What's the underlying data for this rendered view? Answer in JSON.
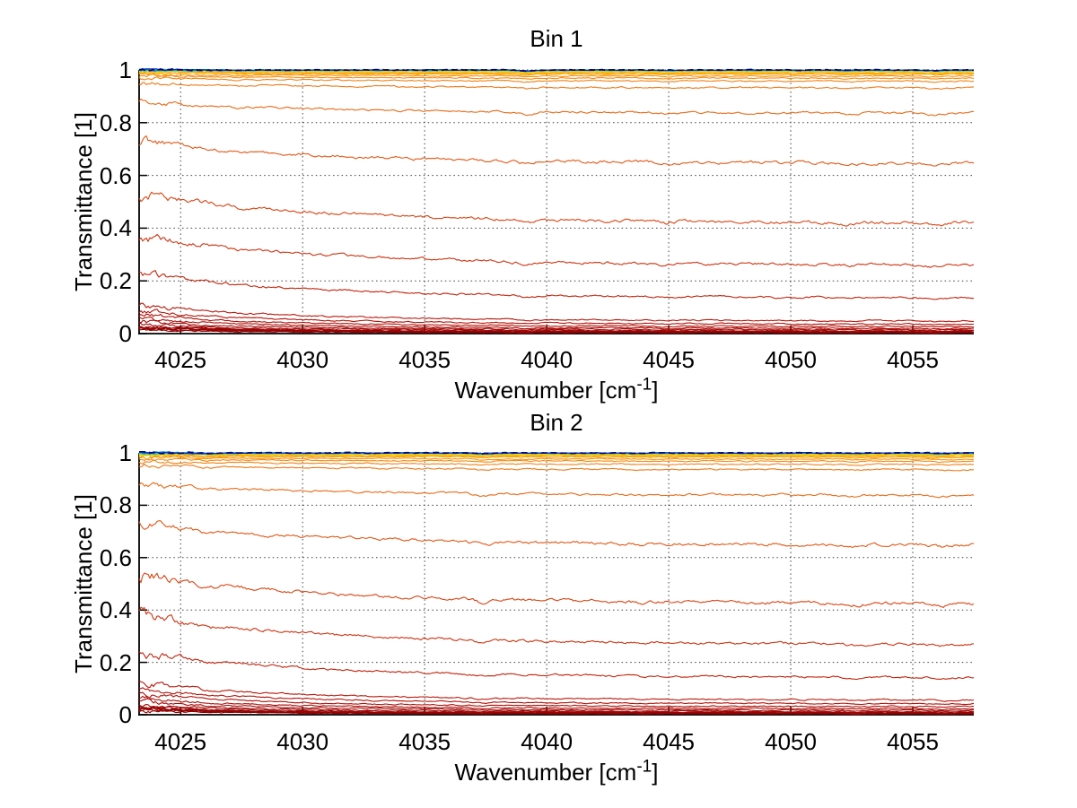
{
  "figure": {
    "background": "#ffffff",
    "axis_color": "#000000"
  },
  "grid_color": "#3f3f3f",
  "chart_data": [
    {
      "type": "line",
      "title": "Bin 1",
      "xlabel_base": "Wavenumber [cm",
      "xlabel_sup": "-1",
      "xlabel_close": "]",
      "ylabel": "Transmittance [1]",
      "xlim": [
        4023.3,
        4057.5
      ],
      "ylim": [
        0,
        1
      ],
      "xticks": [
        "4025",
        "4030",
        "4035",
        "4040",
        "4045",
        "4050",
        "4055"
      ],
      "xtick_values": [
        4025,
        4030,
        4035,
        4040,
        4045,
        4050,
        4055
      ],
      "yticks": [
        "1",
        "0.8",
        "0.6",
        "0.4",
        "0.2",
        "0"
      ],
      "ytick_values": [
        1,
        0.8,
        0.6,
        0.4,
        0.2,
        0
      ],
      "grid": "dotted",
      "legend": "none",
      "decay": {
        "amplitude": 0.27,
        "tau": 8
      },
      "noise": {
        "base": 0.0011,
        "mid": 0.0035,
        "left_boost": 3.5,
        "left_tau": 1.3
      },
      "dips": [
        {
          "x": 4027.3,
          "depth": 0.006,
          "width": 0.35
        },
        {
          "x": 4039.2,
          "depth": 0.014,
          "width": 0.45
        },
        {
          "x": 4044.9,
          "depth": 0.008,
          "width": 0.4
        },
        {
          "x": 4052.4,
          "depth": 0.007,
          "width": 0.4
        },
        {
          "x": 4055.9,
          "depth": 0.011,
          "width": 0.5
        }
      ],
      "curves": [
        {
          "flat": 0.003,
          "color": "#8C0102"
        },
        {
          "flat": 0.0045,
          "color": "#910203"
        },
        {
          "flat": 0.006,
          "color": "#960404",
          "width": 2.2
        },
        {
          "flat": 0.008,
          "color": "#9B0505"
        },
        {
          "flat": 0.011,
          "color": "#A00706"
        },
        {
          "flat": 0.015,
          "color": "#A50A07"
        },
        {
          "flat": 0.02,
          "color": "#AB0D07"
        },
        {
          "flat": 0.027,
          "color": "#B01008"
        },
        {
          "flat": 0.036,
          "color": "#B4130A"
        },
        {
          "flat": 0.048,
          "color": "#B9170B"
        },
        {
          "flat": 0.135,
          "color": "#C3240D"
        },
        {
          "flat": 0.26,
          "color": "#CF3310"
        },
        {
          "flat": 0.419,
          "color": "#D94413"
        },
        {
          "flat": 0.645,
          "color": "#E25715"
        },
        {
          "flat": 0.836,
          "color": "#E96A18"
        },
        {
          "flat": 0.932,
          "color": "#EF7917"
        },
        {
          "flat": 0.9575,
          "color": "#F28214"
        },
        {
          "flat": 0.9685,
          "color": "#F48A11"
        },
        {
          "flat": 0.977,
          "color": "#F6920D"
        },
        {
          "flat": 0.9835,
          "color": "#F89D09"
        },
        {
          "flat": 0.9875,
          "color": "#FAA906"
        },
        {
          "flat": 0.9905,
          "color": "#FBB604"
        },
        {
          "flat": 0.993,
          "color": "#FCC402"
        },
        {
          "flat": 0.995,
          "color": "#FDD300"
        },
        {
          "flat": 0.9963,
          "color": "#F2DC04"
        },
        {
          "flat": 0.9973,
          "color": "#C8DC14"
        },
        {
          "flat": 0.998,
          "color": "#7ED23A"
        },
        {
          "flat": 0.9986,
          "color": "#2FCB96"
        },
        {
          "flat": 0.999,
          "color": "#00BCE0"
        },
        {
          "flat": 0.9994,
          "color": "#0070F0"
        },
        {
          "flat": 0.9997,
          "color": "#0030C8"
        },
        {
          "flat": 0.99985,
          "color": "#000084",
          "dash": "7 4",
          "width": 1.7
        }
      ]
    },
    {
      "type": "line",
      "title": "Bin 2",
      "xlabel_base": "Wavenumber [cm",
      "xlabel_sup": "-1",
      "xlabel_close": "]",
      "ylabel": "Transmittance [1]",
      "xlim": [
        4023.3,
        4057.5
      ],
      "ylim": [
        0,
        1
      ],
      "xticks": [
        "4025",
        "4030",
        "4035",
        "4040",
        "4045",
        "4050",
        "4055"
      ],
      "xtick_values": [
        4025,
        4030,
        4035,
        4040,
        4045,
        4050,
        4055
      ],
      "yticks": [
        "1",
        "0.8",
        "0.6",
        "0.4",
        "0.2",
        "0"
      ],
      "ytick_values": [
        1,
        0.8,
        0.6,
        0.4,
        0.2,
        0
      ],
      "grid": "dotted",
      "legend": "none",
      "decay": {
        "amplitude": 0.27,
        "tau": 8
      },
      "noise": {
        "base": 0.0011,
        "mid": 0.0035,
        "left_boost": 3.8,
        "left_tau": 1.3
      },
      "dips": [
        {
          "x": 4026.2,
          "depth": 0.01,
          "width": 0.4
        },
        {
          "x": 4037.4,
          "depth": 0.013,
          "width": 0.45
        },
        {
          "x": 4043.9,
          "depth": 0.006,
          "width": 0.35
        },
        {
          "x": 4052.6,
          "depth": 0.008,
          "width": 0.4
        },
        {
          "x": 4056.2,
          "depth": 0.009,
          "width": 0.5
        }
      ],
      "curves": [
        {
          "flat": 0.003,
          "color": "#8C0102"
        },
        {
          "flat": 0.0045,
          "color": "#910203"
        },
        {
          "flat": 0.006,
          "color": "#960404",
          "width": 2.2
        },
        {
          "flat": 0.009,
          "color": "#9B0505"
        },
        {
          "flat": 0.012,
          "color": "#A00706"
        },
        {
          "flat": 0.017,
          "color": "#A50A07"
        },
        {
          "flat": 0.023,
          "color": "#AB0D07"
        },
        {
          "flat": 0.031,
          "color": "#B01008"
        },
        {
          "flat": 0.042,
          "color": "#B4130A"
        },
        {
          "flat": 0.056,
          "color": "#B9170B"
        },
        {
          "flat": 0.142,
          "color": "#C3240D"
        },
        {
          "flat": 0.268,
          "color": "#CF3310"
        },
        {
          "flat": 0.424,
          "color": "#D94413"
        },
        {
          "flat": 0.648,
          "color": "#E25715"
        },
        {
          "flat": 0.838,
          "color": "#E96A18"
        },
        {
          "flat": 0.936,
          "color": "#EF7917"
        },
        {
          "flat": 0.956,
          "color": "#F28214"
        },
        {
          "flat": 0.968,
          "color": "#F48A11"
        },
        {
          "flat": 0.976,
          "color": "#F6920D"
        },
        {
          "flat": 0.9835,
          "color": "#F89D09"
        },
        {
          "flat": 0.9875,
          "color": "#FAA906"
        },
        {
          "flat": 0.9905,
          "color": "#FBB604"
        },
        {
          "flat": 0.993,
          "color": "#FCC402"
        },
        {
          "flat": 0.995,
          "color": "#FDD300"
        },
        {
          "flat": 0.9963,
          "color": "#F2DC04"
        },
        {
          "flat": 0.9973,
          "color": "#C8DC14"
        },
        {
          "flat": 0.998,
          "color": "#7ED23A"
        },
        {
          "flat": 0.9986,
          "color": "#2FCB96"
        },
        {
          "flat": 0.999,
          "color": "#00BCE0"
        },
        {
          "flat": 0.9994,
          "color": "#0070F0"
        },
        {
          "flat": 0.9997,
          "color": "#0030C8"
        },
        {
          "flat": 0.99985,
          "color": "#000084",
          "dash": "7 4",
          "width": 1.7
        }
      ]
    }
  ]
}
